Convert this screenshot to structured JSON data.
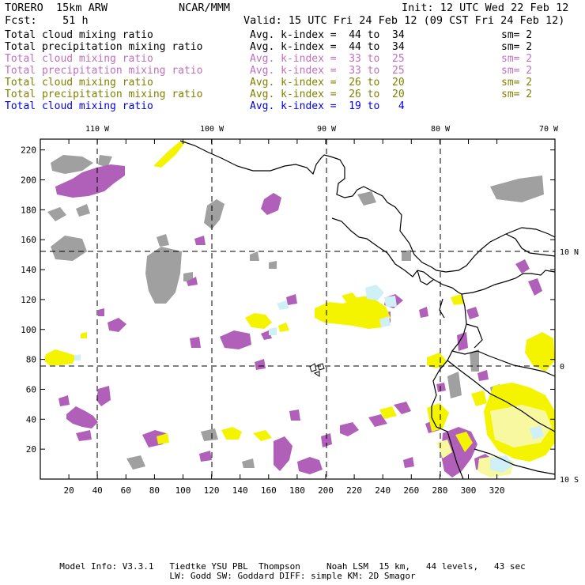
{
  "header": {
    "model": "TORERO  15km ARW",
    "org": "NCAR/MMM",
    "init": "Init: 12 UTC Wed 22 Feb 12",
    "fcst": "Fcst:    51 h",
    "valid": "Valid: 15 UTC Fri 24 Feb 12 (09 CST Fri 24 Feb 12)"
  },
  "legend": [
    {
      "field": "Total cloud mixing ratio",
      "kindex": "Avg. k-index =  44 to  34",
      "sm": "sm= 2",
      "color": "#000000"
    },
    {
      "field": "Total precipitation mixing ratio",
      "kindex": "Avg. k-index =  44 to  34",
      "sm": "sm= 2",
      "color": "#000000"
    },
    {
      "field": "Total cloud mixing ratio",
      "kindex": "Avg. k-index =  33 to  25",
      "sm": "sm= 2",
      "color": "#c070c0"
    },
    {
      "field": "Total precipitation mixing ratio",
      "kindex": "Avg. k-index =  33 to  25",
      "sm": "sm= 2",
      "color": "#c070c0"
    },
    {
      "field": "Total cloud mixing ratio",
      "kindex": "Avg. k-index =  26 to  20",
      "sm": "sm= 2",
      "color": "#808000"
    },
    {
      "field": "Total precipitation mixing ratio",
      "kindex": "Avg. k-index =  26 to  20",
      "sm": "sm= 2",
      "color": "#808000"
    },
    {
      "field": "Total cloud mixing ratio",
      "kindex": "Avg. k-index =  19 to   4",
      "sm": "",
      "color": "#0000e0"
    }
  ],
  "map": {
    "lon_labels": [
      "110 W",
      "100 W",
      "90 W",
      "80 W",
      "70 W"
    ],
    "lat_labels": [
      "10 N",
      "0",
      "10 S"
    ],
    "y_ticks": [
      "220",
      "200",
      "180",
      "160",
      "140",
      "120",
      "100",
      "80",
      "60",
      "40",
      "20"
    ],
    "x_ticks": [
      "20",
      "40",
      "60",
      "80",
      "100",
      "120",
      "140",
      "160",
      "180",
      "200",
      "220",
      "240",
      "260",
      "280",
      "300",
      "320"
    ],
    "colors": {
      "gray": "#a0a0a0",
      "purple": "#b060b8",
      "yellow": "#f4f400",
      "lightyellow": "#f8f8a0",
      "cyan": "#d0f0f8"
    }
  },
  "footer": {
    "line1": "Model Info: V3.3.1   Tiedtke YSU PBL  Thompson     Noah LSM  15 km,   44 levels,   43 sec",
    "line2": "LW: Godd SW: Goddard DIFF: simple KM: 2D Smagor"
  }
}
